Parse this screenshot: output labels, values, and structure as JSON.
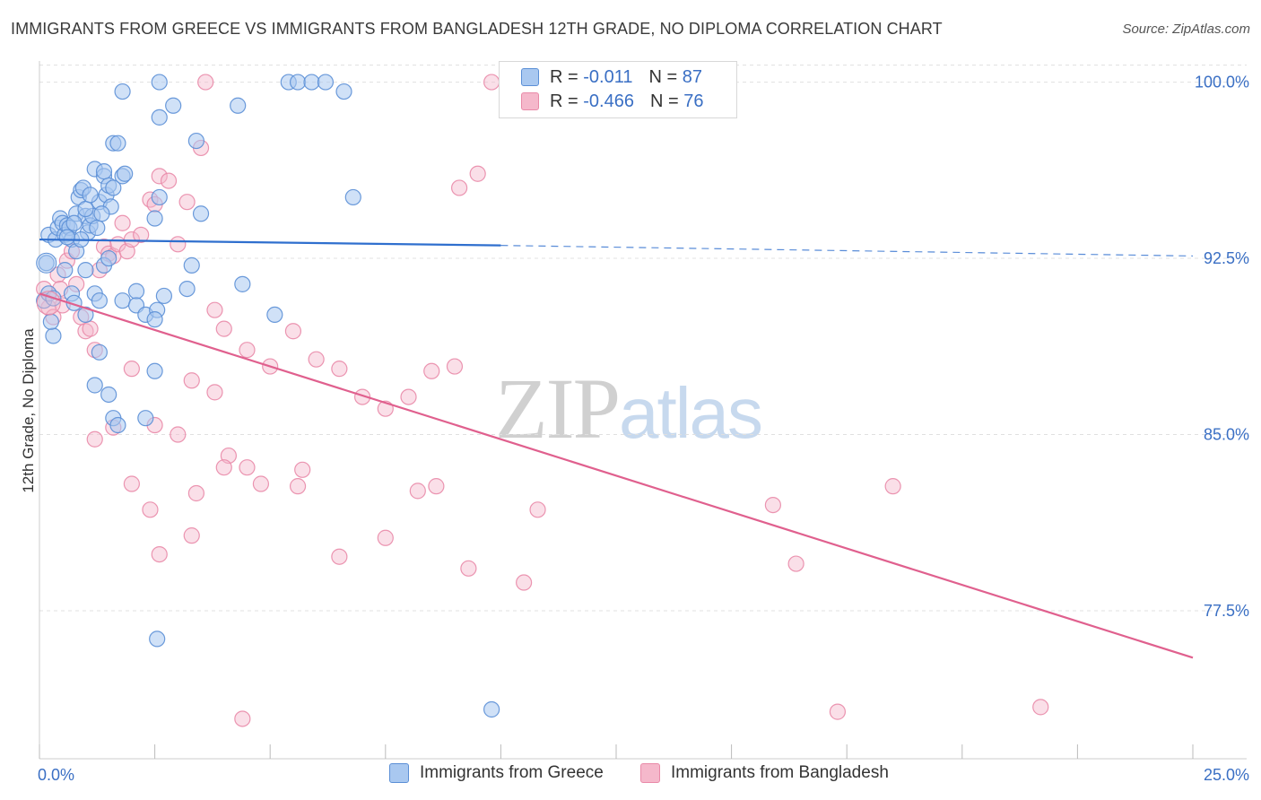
{
  "title": "IMMIGRANTS FROM GREECE VS IMMIGRANTS FROM BANGLADESH 12TH GRADE, NO DIPLOMA CORRELATION CHART",
  "source": "Source: ZipAtlas.com",
  "watermark": {
    "zip": "ZIP",
    "atlas": "atlas"
  },
  "colors": {
    "blue_fill": "#a9c8f0",
    "blue_stroke": "#5b8fd6",
    "blue_line": "#2f6fce",
    "pink_fill": "#f5b8cb",
    "pink_stroke": "#e98aa8",
    "pink_line": "#e0608e",
    "tick_text": "#3a6fc4",
    "grid": "#e0e0e0"
  },
  "legend": {
    "r_label": "R =",
    "n_label": "N =",
    "series1": {
      "r": "-0.011",
      "n": "87"
    },
    "series2": {
      "r": "-0.466",
      "n": "76"
    }
  },
  "chart_data": {
    "type": "scatter",
    "title": "IMMIGRANTS FROM GREECE VS IMMIGRANTS FROM BANGLADESH 12TH GRADE, NO DIPLOMA CORRELATION CHART",
    "xlabel": "",
    "ylabel": "12th Grade, No Diploma",
    "xlim": [
      0,
      25
    ],
    "ylim": [
      71.2,
      100.9
    ],
    "x_tick_labels": [
      "0.0%",
      "25.0%"
    ],
    "y_ticks": [
      77.5,
      85.0,
      92.5,
      100.0
    ],
    "y_tick_labels": [
      "77.5%",
      "85.0%",
      "92.5%",
      "100.0%"
    ],
    "grid": true,
    "series": [
      {
        "name": "Immigrants from Greece",
        "color": "blue",
        "r": -0.011,
        "n": 87,
        "trend": {
          "x0": 0.0,
          "y0": 93.3,
          "x1": 10.0,
          "y1": 93.05,
          "x_end": 25.0,
          "y_end": 92.6,
          "dashed_from": 10.0
        },
        "points": [
          [
            0.15,
            92.3
          ],
          [
            0.1,
            90.7
          ],
          [
            0.3,
            89.2
          ],
          [
            0.2,
            93.5
          ],
          [
            0.35,
            93.3
          ],
          [
            0.4,
            93.8
          ],
          [
            0.45,
            94.2
          ],
          [
            0.5,
            94.0
          ],
          [
            0.55,
            93.5
          ],
          [
            0.6,
            93.9
          ],
          [
            0.65,
            93.8
          ],
          [
            0.7,
            93.3
          ],
          [
            0.8,
            94.4
          ],
          [
            0.85,
            95.1
          ],
          [
            0.9,
            95.4
          ],
          [
            0.95,
            95.5
          ],
          [
            1.0,
            94.3
          ],
          [
            1.05,
            93.6
          ],
          [
            1.1,
            93.9
          ],
          [
            1.15,
            94.3
          ],
          [
            1.3,
            94.9
          ],
          [
            1.2,
            96.3
          ],
          [
            1.4,
            96.0
          ],
          [
            1.45,
            95.2
          ],
          [
            1.5,
            95.6
          ],
          [
            1.6,
            95.5
          ],
          [
            1.55,
            94.7
          ],
          [
            1.4,
            96.2
          ],
          [
            1.8,
            96.0
          ],
          [
            1.85,
            96.1
          ],
          [
            1.6,
            97.4
          ],
          [
            1.7,
            97.4
          ],
          [
            1.8,
            99.6
          ],
          [
            2.6,
            100.0
          ],
          [
            2.6,
            98.5
          ],
          [
            2.9,
            99.0
          ],
          [
            3.4,
            97.5
          ],
          [
            4.3,
            99.0
          ],
          [
            5.4,
            100.0
          ],
          [
            5.6,
            100.0
          ],
          [
            5.9,
            100.0
          ],
          [
            6.2,
            100.0
          ],
          [
            6.6,
            99.6
          ],
          [
            6.8,
            95.1
          ],
          [
            0.55,
            92.0
          ],
          [
            0.7,
            91.0
          ],
          [
            0.75,
            90.6
          ],
          [
            1.0,
            92.0
          ],
          [
            1.2,
            91.0
          ],
          [
            1.3,
            90.7
          ],
          [
            1.4,
            92.2
          ],
          [
            1.5,
            92.5
          ],
          [
            1.8,
            90.7
          ],
          [
            2.1,
            91.1
          ],
          [
            2.1,
            90.5
          ],
          [
            2.3,
            90.1
          ],
          [
            2.55,
            90.3
          ],
          [
            2.7,
            90.9
          ],
          [
            3.2,
            91.2
          ],
          [
            3.3,
            92.2
          ],
          [
            4.4,
            91.4
          ],
          [
            5.1,
            90.1
          ],
          [
            2.6,
            95.1
          ],
          [
            2.5,
            94.2
          ],
          [
            3.5,
            94.4
          ],
          [
            1.0,
            90.1
          ],
          [
            1.3,
            88.5
          ],
          [
            1.2,
            87.1
          ],
          [
            1.5,
            86.7
          ],
          [
            1.6,
            85.7
          ],
          [
            2.3,
            85.7
          ],
          [
            1.7,
            85.4
          ],
          [
            2.5,
            87.7
          ],
          [
            2.5,
            89.9
          ],
          [
            0.8,
            92.8
          ],
          [
            1.0,
            94.6
          ],
          [
            1.1,
            95.2
          ],
          [
            1.25,
            93.8
          ],
          [
            1.35,
            94.4
          ],
          [
            0.9,
            93.3
          ],
          [
            0.75,
            94.0
          ],
          [
            0.6,
            93.4
          ],
          [
            2.55,
            76.3
          ],
          [
            9.8,
            73.3
          ],
          [
            0.2,
            91.0
          ],
          [
            0.3,
            90.8
          ],
          [
            0.25,
            89.8
          ]
        ]
      },
      {
        "name": "Immigrants from Bangladesh",
        "color": "pink",
        "r": -0.466,
        "n": 76,
        "trend": {
          "x0": 0.0,
          "y0": 91.0,
          "x1": 25.0,
          "y1": 75.5
        },
        "points": [
          [
            0.1,
            91.2
          ],
          [
            0.2,
            90.4
          ],
          [
            0.3,
            90.0
          ],
          [
            0.4,
            91.8
          ],
          [
            0.5,
            90.5
          ],
          [
            0.6,
            92.4
          ],
          [
            0.7,
            92.8
          ],
          [
            0.8,
            91.4
          ],
          [
            0.9,
            90.0
          ],
          [
            1.0,
            89.4
          ],
          [
            1.1,
            89.5
          ],
          [
            1.2,
            88.6
          ],
          [
            1.3,
            92.0
          ],
          [
            1.4,
            93.0
          ],
          [
            1.5,
            92.7
          ],
          [
            1.6,
            92.6
          ],
          [
            1.7,
            93.1
          ],
          [
            1.8,
            94.0
          ],
          [
            1.9,
            92.8
          ],
          [
            2.0,
            93.3
          ],
          [
            2.2,
            93.5
          ],
          [
            2.4,
            95.0
          ],
          [
            2.5,
            94.8
          ],
          [
            2.6,
            96.0
          ],
          [
            2.8,
            95.8
          ],
          [
            3.0,
            93.1
          ],
          [
            3.2,
            94.9
          ],
          [
            3.5,
            97.2
          ],
          [
            3.8,
            90.3
          ],
          [
            4.0,
            89.5
          ],
          [
            4.5,
            88.6
          ],
          [
            5.0,
            87.9
          ],
          [
            5.5,
            89.4
          ],
          [
            6.0,
            88.2
          ],
          [
            6.5,
            87.8
          ],
          [
            7.0,
            86.6
          ],
          [
            7.5,
            86.1
          ],
          [
            8.0,
            86.6
          ],
          [
            8.5,
            87.7
          ],
          [
            9.0,
            87.9
          ],
          [
            9.8,
            100.0
          ],
          [
            3.6,
            100.0
          ],
          [
            2.0,
            87.8
          ],
          [
            2.5,
            85.4
          ],
          [
            3.0,
            85.0
          ],
          [
            3.3,
            87.3
          ],
          [
            3.8,
            86.8
          ],
          [
            4.1,
            84.1
          ],
          [
            4.5,
            83.6
          ],
          [
            1.2,
            84.8
          ],
          [
            1.6,
            85.3
          ],
          [
            2.0,
            82.9
          ],
          [
            2.4,
            81.8
          ],
          [
            2.6,
            79.9
          ],
          [
            3.3,
            80.7
          ],
          [
            3.4,
            82.5
          ],
          [
            4.0,
            83.6
          ],
          [
            4.8,
            82.9
          ],
          [
            5.6,
            82.8
          ],
          [
            5.7,
            83.5
          ],
          [
            6.5,
            79.8
          ],
          [
            7.5,
            80.6
          ],
          [
            8.2,
            82.6
          ],
          [
            8.6,
            82.8
          ],
          [
            9.3,
            79.3
          ],
          [
            10.5,
            78.7
          ],
          [
            10.8,
            81.8
          ],
          [
            15.9,
            82.0
          ],
          [
            16.4,
            79.5
          ],
          [
            18.5,
            82.8
          ],
          [
            4.4,
            72.9
          ],
          [
            17.3,
            73.2
          ],
          [
            21.7,
            73.4
          ],
          [
            9.5,
            96.1
          ],
          [
            9.1,
            95.5
          ],
          [
            0.45,
            91.2
          ]
        ]
      }
    ]
  },
  "bottom_legend": {
    "series1_label": "Immigrants from Greece",
    "series2_label": "Immigrants from Bangladesh"
  }
}
